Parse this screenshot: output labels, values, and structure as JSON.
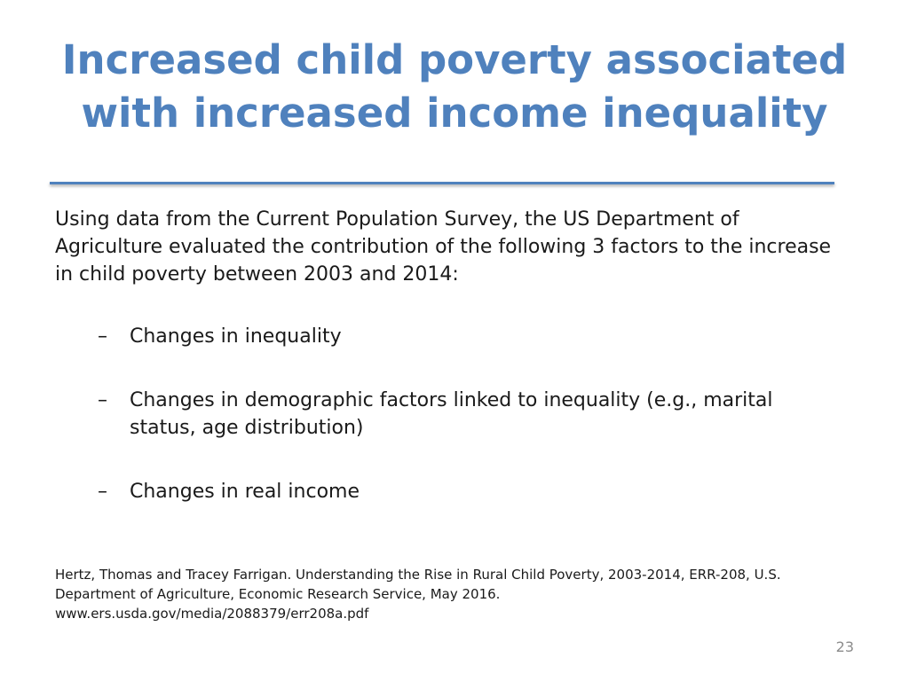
{
  "slide": {
    "title_lines": [
      "Increased child poverty associated",
      "with increased income inequality"
    ],
    "intro": "Using data from the Current Population Survey, the US Department of Agriculture evaluated the contribution of the following 3 factors to the increase in child poverty between 2003 and 2014:",
    "bullet_marker": "–",
    "bullets": [
      "Changes in inequality",
      "Changes in demographic factors linked to inequality (e.g., marital status, age distribution)",
      "Changes in real income"
    ],
    "citation_lines": [
      "Hertz, Thomas and Tracey Farrigan. Understanding the Rise in Rural Child Poverty, 2003-2014, ERR-208, U.S.",
      "Department of Agriculture, Economic Research Service, May 2016.",
      "www.ers.usda.gov/media/2088379/err208a.pdf"
    ],
    "page_number": "23",
    "accent_color": "#4f81bd"
  }
}
